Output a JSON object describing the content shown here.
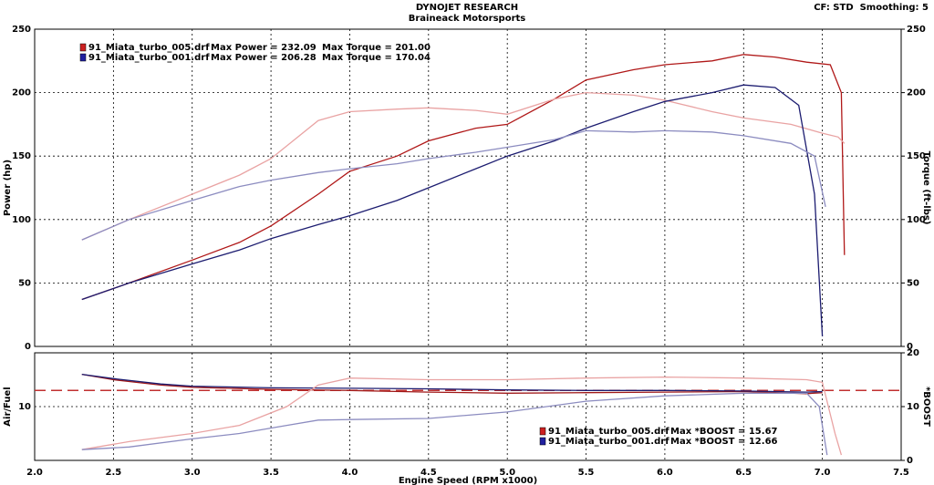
{
  "header": {
    "title": "DYNOJET RESEARCH",
    "subtitle": "Braineack Motorsports",
    "settings": "CF: STD  Smoothing: 5"
  },
  "chart_data": [
    {
      "type": "line",
      "ylabel": "Power (hp)",
      "y2label": "Torque (ft-lbs)",
      "xlim": [
        2.0,
        7.5
      ],
      "xticks": [
        2.5,
        3,
        3.5,
        4,
        4.5,
        5,
        5.5,
        6,
        6.5,
        7
      ],
      "ylim": [
        0,
        250
      ],
      "yticks": [
        0,
        50,
        100,
        150,
        200,
        250
      ],
      "y2lim": [
        0,
        250
      ],
      "y2ticks": [
        0,
        50,
        100,
        150,
        200,
        250
      ],
      "grid": true,
      "legend": [
        {
          "file": "91_Miata_turbo_005.drf",
          "power": "Max Power = 232.09",
          "torque": "Max Torque = 201.00",
          "color": "#cc2020"
        },
        {
          "file": "91_Miata_turbo_001.drf",
          "power": "Max Power = 206.28",
          "torque": "Max Torque = 170.04",
          "color": "#2020a0"
        }
      ],
      "series": [
        {
          "name": "91_Miata_turbo_005.drf Power",
          "color": "#b01818",
          "x": [
            2.3,
            2.6,
            3.0,
            3.3,
            3.5,
            3.8,
            4.0,
            4.3,
            4.5,
            4.8,
            5.0,
            5.3,
            5.5,
            5.8,
            6.0,
            6.3,
            6.5,
            6.7,
            6.9,
            7.05,
            7.12,
            7.14
          ],
          "values": [
            37,
            50,
            68,
            82,
            95,
            120,
            138,
            150,
            162,
            172,
            175,
            195,
            210,
            218,
            222,
            225,
            230,
            228,
            224,
            222,
            200,
            72
          ]
        },
        {
          "name": "91_Miata_turbo_005.drf Torque",
          "color": "#e9a3a3",
          "axis": "y2",
          "x": [
            2.3,
            2.6,
            3.0,
            3.3,
            3.5,
            3.8,
            4.0,
            4.3,
            4.5,
            4.8,
            5.0,
            5.3,
            5.5,
            5.8,
            6.0,
            6.3,
            6.5,
            6.8,
            7.0,
            7.1,
            7.14
          ],
          "values": [
            84,
            100,
            120,
            135,
            148,
            178,
            185,
            187,
            188,
            186,
            183,
            195,
            200,
            198,
            194,
            185,
            180,
            175,
            168,
            165,
            160
          ]
        },
        {
          "name": "91_Miata_turbo_001.drf Power",
          "color": "#1c1c70",
          "x": [
            2.3,
            2.6,
            3.0,
            3.3,
            3.5,
            3.8,
            4.0,
            4.3,
            4.5,
            4.8,
            5.0,
            5.3,
            5.5,
            5.8,
            6.0,
            6.3,
            6.5,
            6.7,
            6.85,
            6.95,
            7.0
          ],
          "values": [
            37,
            50,
            65,
            76,
            85,
            96,
            103,
            115,
            125,
            140,
            150,
            162,
            172,
            185,
            193,
            200,
            206,
            204,
            190,
            120,
            8
          ]
        },
        {
          "name": "91_Miata_turbo_001.drf Torque",
          "color": "#8c8cc0",
          "axis": "y2",
          "x": [
            2.3,
            2.6,
            3.0,
            3.3,
            3.5,
            3.8,
            4.0,
            4.3,
            4.5,
            4.8,
            5.0,
            5.3,
            5.5,
            5.8,
            6.0,
            6.3,
            6.5,
            6.8,
            6.95,
            7.02
          ],
          "values": [
            84,
            100,
            115,
            126,
            131,
            137,
            140,
            144,
            148,
            153,
            157,
            163,
            170,
            169,
            170,
            169,
            166,
            160,
            150,
            110
          ]
        }
      ]
    },
    {
      "type": "line",
      "ylabel": "Air/Fuel",
      "y2label": "*BOOST",
      "xlabel": "Engine Speed (RPM x1000)",
      "xlim": [
        2.0,
        7.5
      ],
      "xticks": [
        {
          "value": 2,
          "label": "2.0"
        },
        2.5,
        {
          "value": 3,
          "label": "3.0"
        },
        3.5,
        {
          "value": 4,
          "label": "4.0"
        },
        4.5,
        {
          "value": 5,
          "label": "5.0"
        },
        5.5,
        {
          "value": 6,
          "label": "6.0"
        },
        6.5,
        {
          "value": 7,
          "label": "7.0"
        },
        7.5
      ],
      "ylim": [
        0,
        20
      ],
      "yticks": [
        10
      ],
      "y2lim": [
        0,
        20
      ],
      "y2ticks": [
        0,
        10,
        20
      ],
      "grid": true,
      "reference": {
        "value": 13,
        "color": "#c03030"
      },
      "legend": [
        {
          "file": "91_Miata_turbo_005.drf",
          "boost": "Max *BOOST = 15.67",
          "color": "#cc2020"
        },
        {
          "file": "91_Miata_turbo_001.drf",
          "boost": "Max *BOOST = 12.66",
          "color": "#2020a0"
        }
      ],
      "series": [
        {
          "name": "91_Miata_turbo_005.drf Air/Fuel",
          "color": "#a01818",
          "x": [
            2.3,
            2.5,
            2.8,
            3.0,
            3.5,
            4.0,
            4.5,
            5.0,
            5.5,
            6.0,
            6.5,
            6.9,
            7.0
          ],
          "values": [
            16,
            15,
            14,
            13.6,
            13.2,
            13,
            12.7,
            12.5,
            12.6,
            12.7,
            12.8,
            12.4,
            12.6
          ]
        },
        {
          "name": "91_Miata_turbo_001.drf Air/Fuel",
          "color": "#1c1c70",
          "x": [
            2.3,
            2.5,
            2.8,
            3.0,
            3.5,
            4.0,
            4.5,
            5.0,
            5.5,
            6.0,
            6.5,
            6.9,
            7.0
          ],
          "values": [
            16,
            15.2,
            14.2,
            13.8,
            13.5,
            13.4,
            13.3,
            13.1,
            13,
            13,
            12.9,
            12.7,
            12.8
          ]
        },
        {
          "name": "91_Miata_turbo_005.drf *BOOST",
          "color": "#e9a3a3",
          "axis": "y2",
          "x": [
            2.3,
            2.6,
            3.0,
            3.3,
            3.6,
            3.8,
            4.0,
            4.5,
            5.0,
            5.5,
            6.0,
            6.5,
            6.9,
            7.0,
            7.08,
            7.12
          ],
          "values": [
            2,
            3.5,
            5,
            6.5,
            10,
            14,
            15.3,
            15,
            15,
            15.3,
            15.5,
            15.3,
            15,
            14.5,
            5,
            1
          ]
        },
        {
          "name": "91_Miata_turbo_001.drf *BOOST",
          "color": "#8c8cc0",
          "axis": "y2",
          "x": [
            2.3,
            2.6,
            3.0,
            3.3,
            3.6,
            3.8,
            4.0,
            4.5,
            5.0,
            5.5,
            6.0,
            6.5,
            6.9,
            6.98,
            7.03
          ],
          "values": [
            2,
            2.5,
            4,
            5,
            6.5,
            7.5,
            7.6,
            7.8,
            9,
            11,
            12,
            12.5,
            12.5,
            10,
            1
          ]
        }
      ]
    }
  ]
}
